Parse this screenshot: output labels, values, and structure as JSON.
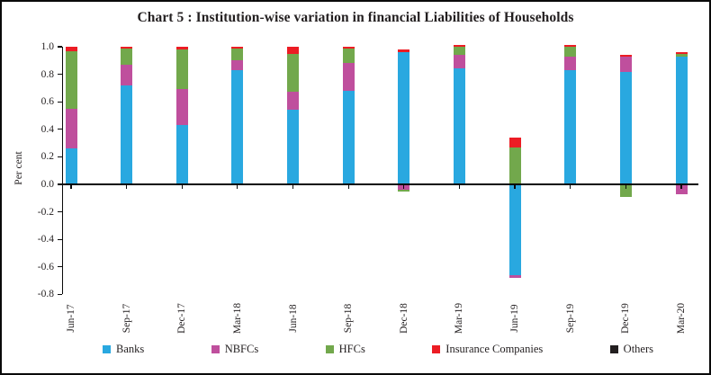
{
  "title": "Chart 5 : Institution-wise variation in financial Liabilities of Households",
  "chart_data": {
    "type": "bar",
    "stacked": true,
    "title": "Chart 5 : Institution-wise variation in financial Liabilities of Households",
    "xlabel": "",
    "ylabel": "Per cent",
    "ylim": [
      -0.8,
      1.0
    ],
    "ytick_labels": [
      "1.0",
      "0.8",
      "0.6",
      "0.4",
      "0.2",
      "0.0",
      "-0.2",
      "-0.4",
      "-0.6",
      "-0.8"
    ],
    "grid": false,
    "legend_position": "bottom",
    "categories": [
      "Jun-17",
      "Sep-17",
      "Dec-17",
      "Mar-18",
      "Jun-18",
      "Sep-18",
      "Dec-18",
      "Mar-19",
      "Jun-19",
      "Sep-19",
      "Dec-19",
      "Mar-20"
    ],
    "series": [
      {
        "name": "Banks",
        "color": "#29a8e0",
        "values": [
          0.26,
          0.72,
          0.43,
          0.83,
          0.54,
          0.68,
          0.96,
          0.84,
          -0.66,
          0.83,
          0.82,
          0.93
        ]
      },
      {
        "name": "NBFCs",
        "color": "#bf4f9d",
        "values": [
          0.29,
          0.15,
          0.26,
          0.07,
          0.13,
          0.2,
          -0.04,
          0.1,
          -0.02,
          0.1,
          0.11,
          -0.07
        ]
      },
      {
        "name": "HFCs",
        "color": "#72a84c",
        "values": [
          0.42,
          0.12,
          0.29,
          0.09,
          0.28,
          0.11,
          -0.01,
          0.06,
          0.27,
          0.07,
          -0.09,
          0.02
        ]
      },
      {
        "name": "Insurance Companies",
        "color": "#ec1c24",
        "values": [
          0.03,
          0.01,
          0.02,
          0.01,
          0.05,
          0.01,
          0.02,
          0.01,
          0.07,
          0.01,
          0.01,
          0.01
        ]
      },
      {
        "name": "Others",
        "color": "#231f20",
        "values": [
          0,
          0,
          0,
          0,
          0,
          0,
          0,
          0,
          0,
          0,
          0,
          0
        ]
      }
    ]
  }
}
